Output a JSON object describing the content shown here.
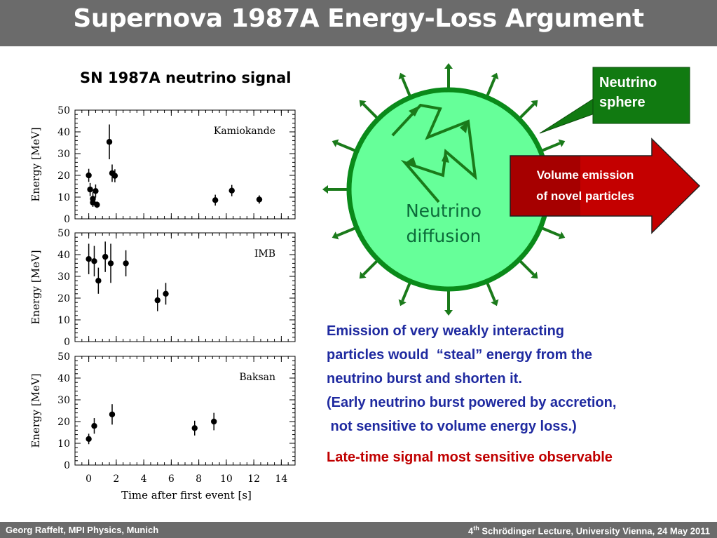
{
  "slide": {
    "title": "Supernova 1987A Energy-Loss Argument",
    "footer_left": "Georg Raffelt, MPI Physics, Munich",
    "footer_right_pre": "4",
    "footer_right_sup": "th",
    "footer_right_post": " Schrödinger Lecture, University Vienna, 24 May 2011"
  },
  "plots_title": "SN 1987A neutrino signal",
  "chart_data": [
    {
      "type": "scatter",
      "name": "Kamiokande",
      "ylabel": "Energy  [MeV]",
      "xlabel": "Time  after  first  event  [s]",
      "xlim": [
        -1,
        15
      ],
      "ylim": [
        0,
        50
      ],
      "xticks": [
        "0",
        "2",
        "4",
        "6",
        "8",
        "10",
        "12",
        "14"
      ],
      "yticks": [
        "0",
        "10",
        "20",
        "30",
        "40",
        "50"
      ],
      "points": [
        {
          "x": 0.0,
          "y": 20,
          "err": 3
        },
        {
          "x": 0.1,
          "y": 13.5,
          "err": 3
        },
        {
          "x": 0.3,
          "y": 7.5,
          "err": 2
        },
        {
          "x": 0.3,
          "y": 9.2,
          "err": 3
        },
        {
          "x": 0.5,
          "y": 12.8,
          "err": 3
        },
        {
          "x": 0.6,
          "y": 6.5,
          "err": 1.5
        },
        {
          "x": 1.5,
          "y": 35.4,
          "err": 8
        },
        {
          "x": 1.7,
          "y": 21,
          "err": 4
        },
        {
          "x": 1.9,
          "y": 19.8,
          "err": 3
        },
        {
          "x": 9.2,
          "y": 8.6,
          "err": 2.5
        },
        {
          "x": 10.4,
          "y": 13,
          "err": 2.6
        },
        {
          "x": 12.4,
          "y": 8.9,
          "err": 1.9
        }
      ]
    },
    {
      "type": "scatter",
      "name": "IMB",
      "ylabel": "Energy  [MeV]",
      "xlabel": "",
      "xlim": [
        -1,
        15
      ],
      "ylim": [
        0,
        50
      ],
      "xticks": [],
      "yticks": [
        "0",
        "10",
        "20",
        "30",
        "40",
        "50"
      ],
      "points": [
        {
          "x": 0.0,
          "y": 38,
          "err": 7
        },
        {
          "x": 0.4,
          "y": 37,
          "err": 7
        },
        {
          "x": 0.7,
          "y": 28,
          "err": 6
        },
        {
          "x": 1.2,
          "y": 39,
          "err": 7
        },
        {
          "x": 1.6,
          "y": 36,
          "err": 9
        },
        {
          "x": 2.7,
          "y": 36,
          "err": 6
        },
        {
          "x": 5.0,
          "y": 19,
          "err": 5
        },
        {
          "x": 5.6,
          "y": 22,
          "err": 5
        }
      ]
    },
    {
      "type": "scatter",
      "name": "Baksan",
      "ylabel": "Energy  [MeV]",
      "xlabel": "Time  after  first  event  [s]",
      "xlim": [
        -1,
        15
      ],
      "ylim": [
        0,
        50
      ],
      "xticks": [
        "0",
        "2",
        "4",
        "6",
        "8",
        "10",
        "12",
        "14"
      ],
      "yticks": [
        "0",
        "10",
        "20",
        "30",
        "40",
        "50"
      ],
      "points": [
        {
          "x": 0.0,
          "y": 12,
          "err": 2.4
        },
        {
          "x": 0.4,
          "y": 18,
          "err": 3.6
        },
        {
          "x": 1.7,
          "y": 23.3,
          "err": 4.7
        },
        {
          "x": 7.7,
          "y": 17,
          "err": 3.4
        },
        {
          "x": 9.1,
          "y": 20,
          "err": 4
        }
      ]
    }
  ],
  "diagram": {
    "sphere_label_line1": "Neutrino",
    "sphere_label_line2": "sphere",
    "arrow_label_line1": "Volume emission",
    "arrow_label_line2": "of novel particles",
    "diffusion_line1": "Neutrino",
    "diffusion_line2": "diffusion",
    "colors": {
      "sphere_fill": "#66ff99",
      "sphere_stroke": "#0a8a1a",
      "arrow_green": "#1a7a1a",
      "label_box": "#117a11",
      "red_arrow": "#c40000"
    }
  },
  "text": {
    "line1": "Emission of very weakly interacting",
    "line2": "particles would  “steal” energy from the",
    "line3": "neutrino burst and shorten it.",
    "line4": "(Early neutrino burst powered by accretion,",
    "line5": " not sensitive to volume energy loss.)",
    "red_line": "Late-time signal most sensitive observable"
  }
}
